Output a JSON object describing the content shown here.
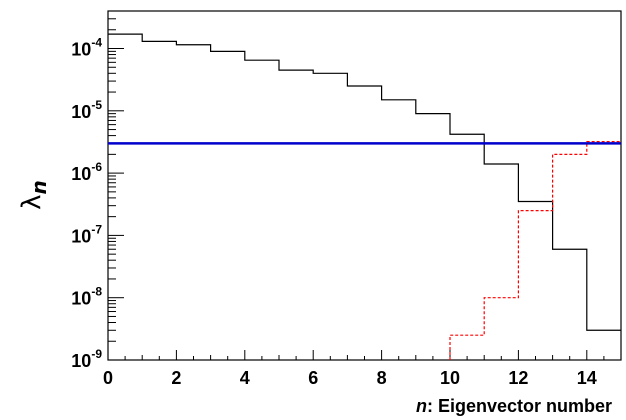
{
  "chart_data": {
    "type": "line",
    "xlabel_italic": "n",
    "xlabel_rest": ": Eigenvector number",
    "ylabel_symbol": "λ",
    "ylabel_sub": "n",
    "xlim": [
      0,
      15
    ],
    "ylim": [
      1e-09,
      0.0004
    ],
    "yscale": "log",
    "grid": false,
    "x_ticks": [
      "0",
      "2",
      "4",
      "6",
      "8",
      "10",
      "12",
      "14"
    ],
    "y_ticks": [
      {
        "base": "10",
        "exp": "-4",
        "value": 0.0001
      },
      {
        "base": "10",
        "exp": "-5",
        "value": 1e-05
      },
      {
        "base": "10",
        "exp": "-6",
        "value": 1e-06
      },
      {
        "base": "10",
        "exp": "-7",
        "value": 1e-07
      },
      {
        "base": "10",
        "exp": "-8",
        "value": 1e-08
      },
      {
        "base": "10",
        "exp": "-9",
        "value": 1e-09
      }
    ],
    "series": [
      {
        "style": "solid step",
        "color": "#000000",
        "bin_edges": [
          0,
          1,
          2,
          3,
          4,
          5,
          6,
          7,
          8,
          9,
          10,
          11,
          12,
          13,
          14,
          15
        ],
        "values": [
          0.00017,
          0.00013,
          0.000115,
          9e-05,
          6.5e-05,
          4.5e-05,
          4e-05,
          2.5e-05,
          1.5e-05,
          9e-06,
          4.2e-06,
          1.4e-06,
          3.5e-07,
          6e-08,
          3e-09
        ]
      },
      {
        "style": "dashed step",
        "color": "#ff0000",
        "bin_edges": [
          10,
          11,
          12,
          13,
          14,
          15
        ],
        "values": [
          2.5e-09,
          1e-08,
          2.5e-07,
          2e-06,
          3.2e-06
        ]
      },
      {
        "style": "horizontal line",
        "color": "#0000cc",
        "value": 3e-06
      }
    ]
  }
}
